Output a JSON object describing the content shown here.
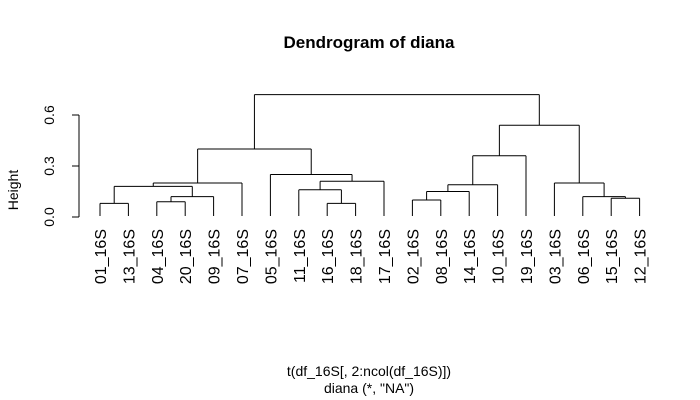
{
  "chart_data": {
    "type": "dendrogram",
    "title": "Dendrogram of diana",
    "ylabel": "Height",
    "xlabel": "t(df_16S[, 2:ncol(df_16S)])",
    "subtitle": "diana (*, \"NA\")",
    "ylim": [
      0,
      0.75
    ],
    "yticks": [
      "0.0",
      "0.3",
      "0.6"
    ],
    "ytick_values": [
      0.0,
      0.3,
      0.6
    ],
    "leaves": [
      "01_16S",
      "13_16S",
      "04_16S",
      "20_16S",
      "09_16S",
      "07_16S",
      "05_16S",
      "11_16S",
      "16_16S",
      "18_16S",
      "17_16S",
      "02_16S",
      "08_16S",
      "14_16S",
      "10_16S",
      "19_16S",
      "03_16S",
      "06_16S",
      "15_16S",
      "12_16S"
    ],
    "merges": [
      {
        "id": "n1",
        "left": "01_16S",
        "right": "13_16S",
        "height": 0.08
      },
      {
        "id": "n2",
        "left": "04_16S",
        "right": "20_16S",
        "height": 0.09
      },
      {
        "id": "n3",
        "left": "n2",
        "right": "09_16S",
        "height": 0.12
      },
      {
        "id": "n4",
        "left": "n1",
        "right": "n3",
        "height": 0.18
      },
      {
        "id": "n5",
        "left": "n4",
        "right": "07_16S",
        "height": 0.2
      },
      {
        "id": "n6",
        "left": "16_16S",
        "right": "18_16S",
        "height": 0.08
      },
      {
        "id": "n7",
        "left": "11_16S",
        "right": "n6",
        "height": 0.16
      },
      {
        "id": "n8",
        "left": "n7",
        "right": "17_16S",
        "height": 0.21
      },
      {
        "id": "n9",
        "left": "05_16S",
        "right": "n8",
        "height": 0.25
      },
      {
        "id": "n10",
        "left": "n5",
        "right": "n9",
        "height": 0.4
      },
      {
        "id": "n11",
        "left": "02_16S",
        "right": "08_16S",
        "height": 0.1
      },
      {
        "id": "n12",
        "left": "n11",
        "right": "14_16S",
        "height": 0.15
      },
      {
        "id": "n13",
        "left": "n12",
        "right": "10_16S",
        "height": 0.19
      },
      {
        "id": "n14",
        "left": "n13",
        "right": "19_16S",
        "height": 0.36
      },
      {
        "id": "n15",
        "left": "15_16S",
        "right": "12_16S",
        "height": 0.11
      },
      {
        "id": "n16",
        "left": "06_16S",
        "right": "n15",
        "height": 0.12
      },
      {
        "id": "n17",
        "left": "03_16S",
        "right": "n16",
        "height": 0.2
      },
      {
        "id": "n18",
        "left": "n14",
        "right": "n17",
        "height": 0.54
      },
      {
        "id": "n19",
        "left": "n10",
        "right": "n18",
        "height": 0.72
      }
    ]
  }
}
